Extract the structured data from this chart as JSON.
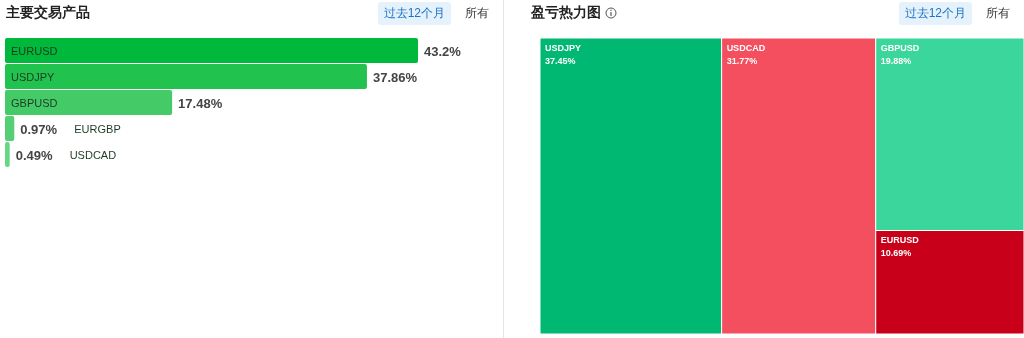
{
  "chart_data": [
    {
      "type": "bar",
      "orientation": "horizontal",
      "title": "主要交易产品",
      "categories": [
        "EURUSD",
        "USDJPY",
        "GBPUSD",
        "EURGBP",
        "USDCAD"
      ],
      "values": [
        43.2,
        37.86,
        17.48,
        0.97,
        0.49
      ],
      "value_labels": [
        "43.2%",
        "37.86%",
        "17.48%",
        "0.97%",
        "0.49%"
      ],
      "colors": [
        "#00b93a",
        "#22c24f",
        "#44cb68",
        "#55cf76",
        "#66d882"
      ],
      "annotations": [
        "过去12个月",
        "所有"
      ]
    },
    {
      "type": "other",
      "title": "盈亏热力图",
      "categories": [
        "USDJPY",
        "USDCAD",
        "GBPUSD",
        "EURUSD"
      ],
      "values": [
        37.45,
        31.77,
        19.88,
        10.69
      ],
      "value_labels": [
        "37.45%",
        "31.77%",
        "19.88%",
        "10.69%"
      ],
      "colors": [
        "#00b872",
        "#f44f5f",
        "#3bd69b",
        "#c8001a"
      ],
      "annotations": [
        "过去12个月",
        "所有"
      ]
    }
  ]
}
